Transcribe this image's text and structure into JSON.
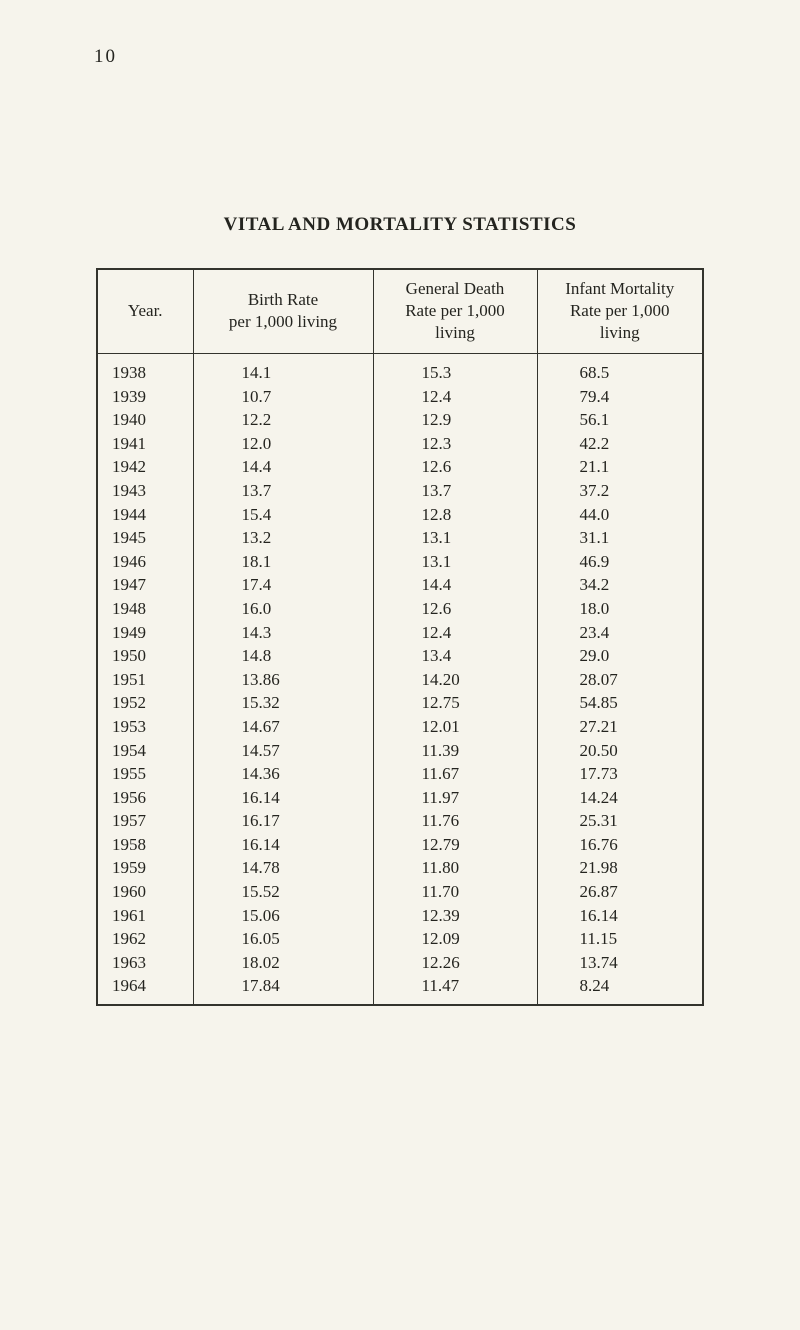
{
  "page": {
    "number": "10"
  },
  "title": "VITAL AND MORTALITY STATISTICS",
  "table": {
    "headers": {
      "year": "Year.",
      "birth": "Birth Rate\nper 1,000 living",
      "death": "General Death\nRate per 1,000\nliving",
      "infant": "Infant Mortality\nRate per 1,000\nliving"
    },
    "rows": [
      [
        "1938",
        "14.1",
        "15.3",
        "68.5"
      ],
      [
        "1939",
        "10.7",
        "12.4",
        "79.4"
      ],
      [
        "1940",
        "12.2",
        "12.9",
        "56.1"
      ],
      [
        "1941",
        "12.0",
        "12.3",
        "42.2"
      ],
      [
        "1942",
        "14.4",
        "12.6",
        "21.1"
      ],
      [
        "1943",
        "13.7",
        "13.7",
        "37.2"
      ],
      [
        "1944",
        "15.4",
        "12.8",
        "44.0"
      ],
      [
        "1945",
        "13.2",
        "13.1",
        "31.1"
      ],
      [
        "1946",
        "18.1",
        "13.1",
        "46.9"
      ],
      [
        "1947",
        "17.4",
        "14.4",
        "34.2"
      ],
      [
        "1948",
        "16.0",
        "12.6",
        "18.0"
      ],
      [
        "1949",
        "14.3",
        "12.4",
        "23.4"
      ],
      [
        "1950",
        "14.8",
        "13.4",
        "29.0"
      ],
      [
        "1951",
        "13.86",
        "14.20",
        "28.07"
      ],
      [
        "1952",
        "15.32",
        "12.75",
        "54.85"
      ],
      [
        "1953",
        "14.67",
        "12.01",
        "27.21"
      ],
      [
        "1954",
        "14.57",
        "11.39",
        "20.50"
      ],
      [
        "1955",
        "14.36",
        "11.67",
        "17.73"
      ],
      [
        "1956",
        "16.14",
        "11.97",
        "14.24"
      ],
      [
        "1957",
        "16.17",
        "11.76",
        "25.31"
      ],
      [
        "1958",
        "16.14",
        "12.79",
        "16.76"
      ],
      [
        "1959",
        "14.78",
        "11.80",
        "21.98"
      ],
      [
        "1960",
        "15.52",
        "11.70",
        "26.87"
      ],
      [
        "1961",
        "15.06",
        "12.39",
        "16.14"
      ],
      [
        "1962",
        "16.05",
        "12.09",
        "11.15"
      ],
      [
        "1963",
        "18.02",
        "12.26",
        "13.74"
      ],
      [
        "1964",
        "17.84",
        "11.47",
        "8.24"
      ]
    ]
  },
  "chart_data": {
    "type": "table",
    "title": "VITAL AND MORTALITY STATISTICS",
    "columns": [
      "Year",
      "Birth Rate per 1,000 living",
      "General Death Rate per 1,000 living",
      "Infant Mortality Rate per 1,000 living"
    ],
    "years": [
      1938,
      1939,
      1940,
      1941,
      1942,
      1943,
      1944,
      1945,
      1946,
      1947,
      1948,
      1949,
      1950,
      1951,
      1952,
      1953,
      1954,
      1955,
      1956,
      1957,
      1958,
      1959,
      1960,
      1961,
      1962,
      1963,
      1964
    ],
    "series": [
      {
        "name": "Birth Rate per 1,000 living",
        "values": [
          14.1,
          10.7,
          12.2,
          12.0,
          14.4,
          13.7,
          15.4,
          13.2,
          18.1,
          17.4,
          16.0,
          14.3,
          14.8,
          13.86,
          15.32,
          14.67,
          14.57,
          14.36,
          16.14,
          16.17,
          16.14,
          14.78,
          15.52,
          15.06,
          16.05,
          18.02,
          17.84
        ]
      },
      {
        "name": "General Death Rate per 1,000 living",
        "values": [
          15.3,
          12.4,
          12.9,
          12.3,
          12.6,
          13.7,
          12.8,
          13.1,
          13.1,
          14.4,
          12.6,
          12.4,
          13.4,
          14.2,
          12.75,
          12.01,
          11.39,
          11.67,
          11.97,
          11.76,
          12.79,
          11.8,
          11.7,
          12.39,
          12.09,
          12.26,
          11.47
        ]
      },
      {
        "name": "Infant Mortality Rate per 1,000 living",
        "values": [
          68.5,
          79.4,
          56.1,
          42.2,
          21.1,
          37.2,
          44.0,
          31.1,
          46.9,
          34.2,
          18.0,
          23.4,
          29.0,
          28.07,
          54.85,
          27.21,
          20.5,
          17.73,
          14.24,
          25.31,
          16.76,
          21.98,
          26.87,
          16.14,
          11.15,
          13.74,
          8.24
        ]
      }
    ]
  }
}
